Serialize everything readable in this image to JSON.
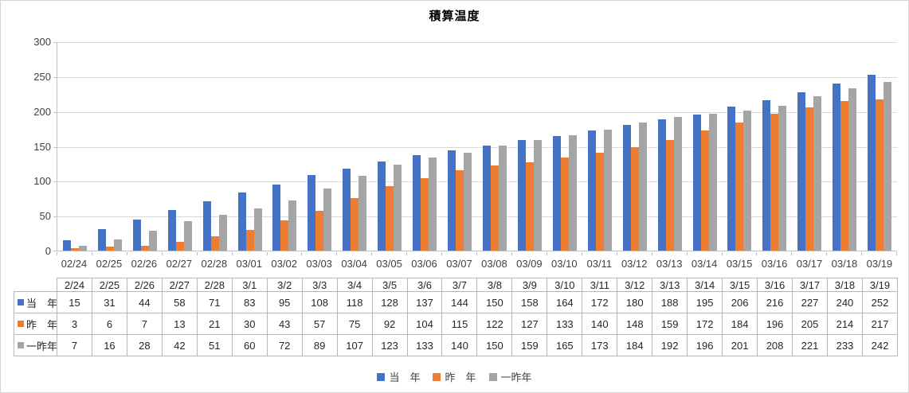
{
  "chart": {
    "title": "積算温度"
  },
  "chart_data": {
    "type": "bar",
    "title": "積算温度",
    "categories": [
      "02/24",
      "02/25",
      "02/26",
      "02/27",
      "02/28",
      "03/01",
      "03/02",
      "03/03",
      "03/04",
      "03/05",
      "03/06",
      "03/07",
      "03/08",
      "03/09",
      "03/10",
      "03/11",
      "03/12",
      "03/13",
      "03/14",
      "03/15",
      "03/16",
      "03/17",
      "03/18",
      "03/19"
    ],
    "series": [
      {
        "key": "this-year",
        "name": "当　年",
        "color": "#4472C4",
        "values": [
          15,
          31,
          44,
          58,
          71,
          83,
          95,
          108,
          118,
          128,
          137,
          144,
          150,
          158,
          164,
          172,
          180,
          188,
          195,
          206,
          216,
          227,
          240,
          252
        ]
      },
      {
        "key": "last-year",
        "name": "昨　年",
        "color": "#ED7D31",
        "values": [
          3,
          6,
          7,
          13,
          21,
          30,
          43,
          57,
          75,
          92,
          104,
          115,
          122,
          127,
          133,
          140,
          148,
          159,
          172,
          184,
          196,
          205,
          214,
          217
        ]
      },
      {
        "key": "two-years-ago",
        "name": "一昨年",
        "color": "#A5A5A5",
        "values": [
          7,
          16,
          28,
          42,
          51,
          60,
          72,
          89,
          107,
          123,
          133,
          140,
          150,
          159,
          165,
          173,
          184,
          192,
          196,
          201,
          208,
          221,
          233,
          242
        ]
      }
    ],
    "xlabel": "",
    "ylabel": "",
    "ylim": [
      0,
      300
    ],
    "yticks": [
      0,
      50,
      100,
      150,
      200,
      250,
      300
    ],
    "grid": true,
    "legend_position": "bottom"
  },
  "table": {
    "header": [
      "2/24",
      "2/25",
      "2/26",
      "2/27",
      "2/28",
      "3/1",
      "3/2",
      "3/3",
      "3/4",
      "3/5",
      "3/6",
      "3/7",
      "3/8",
      "3/9",
      "3/10",
      "3/11",
      "3/12",
      "3/13",
      "3/14",
      "3/15",
      "3/16",
      "3/17",
      "3/18",
      "3/19"
    ],
    "rows": [
      {
        "label": "当　年",
        "marker_color": "#4472C4",
        "values": [
          15,
          31,
          44,
          58,
          71,
          83,
          95,
          108,
          118,
          128,
          137,
          144,
          150,
          158,
          164,
          172,
          180,
          188,
          195,
          206,
          216,
          227,
          240,
          252
        ]
      },
      {
        "label": "昨　年",
        "marker_color": "#ED7D31",
        "values": [
          3,
          6,
          7,
          13,
          21,
          30,
          43,
          57,
          75,
          92,
          104,
          115,
          122,
          127,
          133,
          140,
          148,
          159,
          172,
          184,
          196,
          205,
          214,
          217
        ]
      },
      {
        "label": "一昨年",
        "marker_color": "#A5A5A5",
        "values": [
          7,
          16,
          28,
          42,
          51,
          60,
          72,
          89,
          107,
          123,
          133,
          140,
          150,
          159,
          165,
          173,
          184,
          192,
          196,
          201,
          208,
          221,
          233,
          242
        ]
      }
    ]
  },
  "colors": {
    "series_blue": "#4472C4",
    "series_orange": "#ED7D31",
    "series_gray": "#A5A5A5",
    "gridline": "#D9D9D9",
    "axis_line": "#BFBFBF",
    "table_border": "#B7B7B7",
    "text": "#404040"
  }
}
